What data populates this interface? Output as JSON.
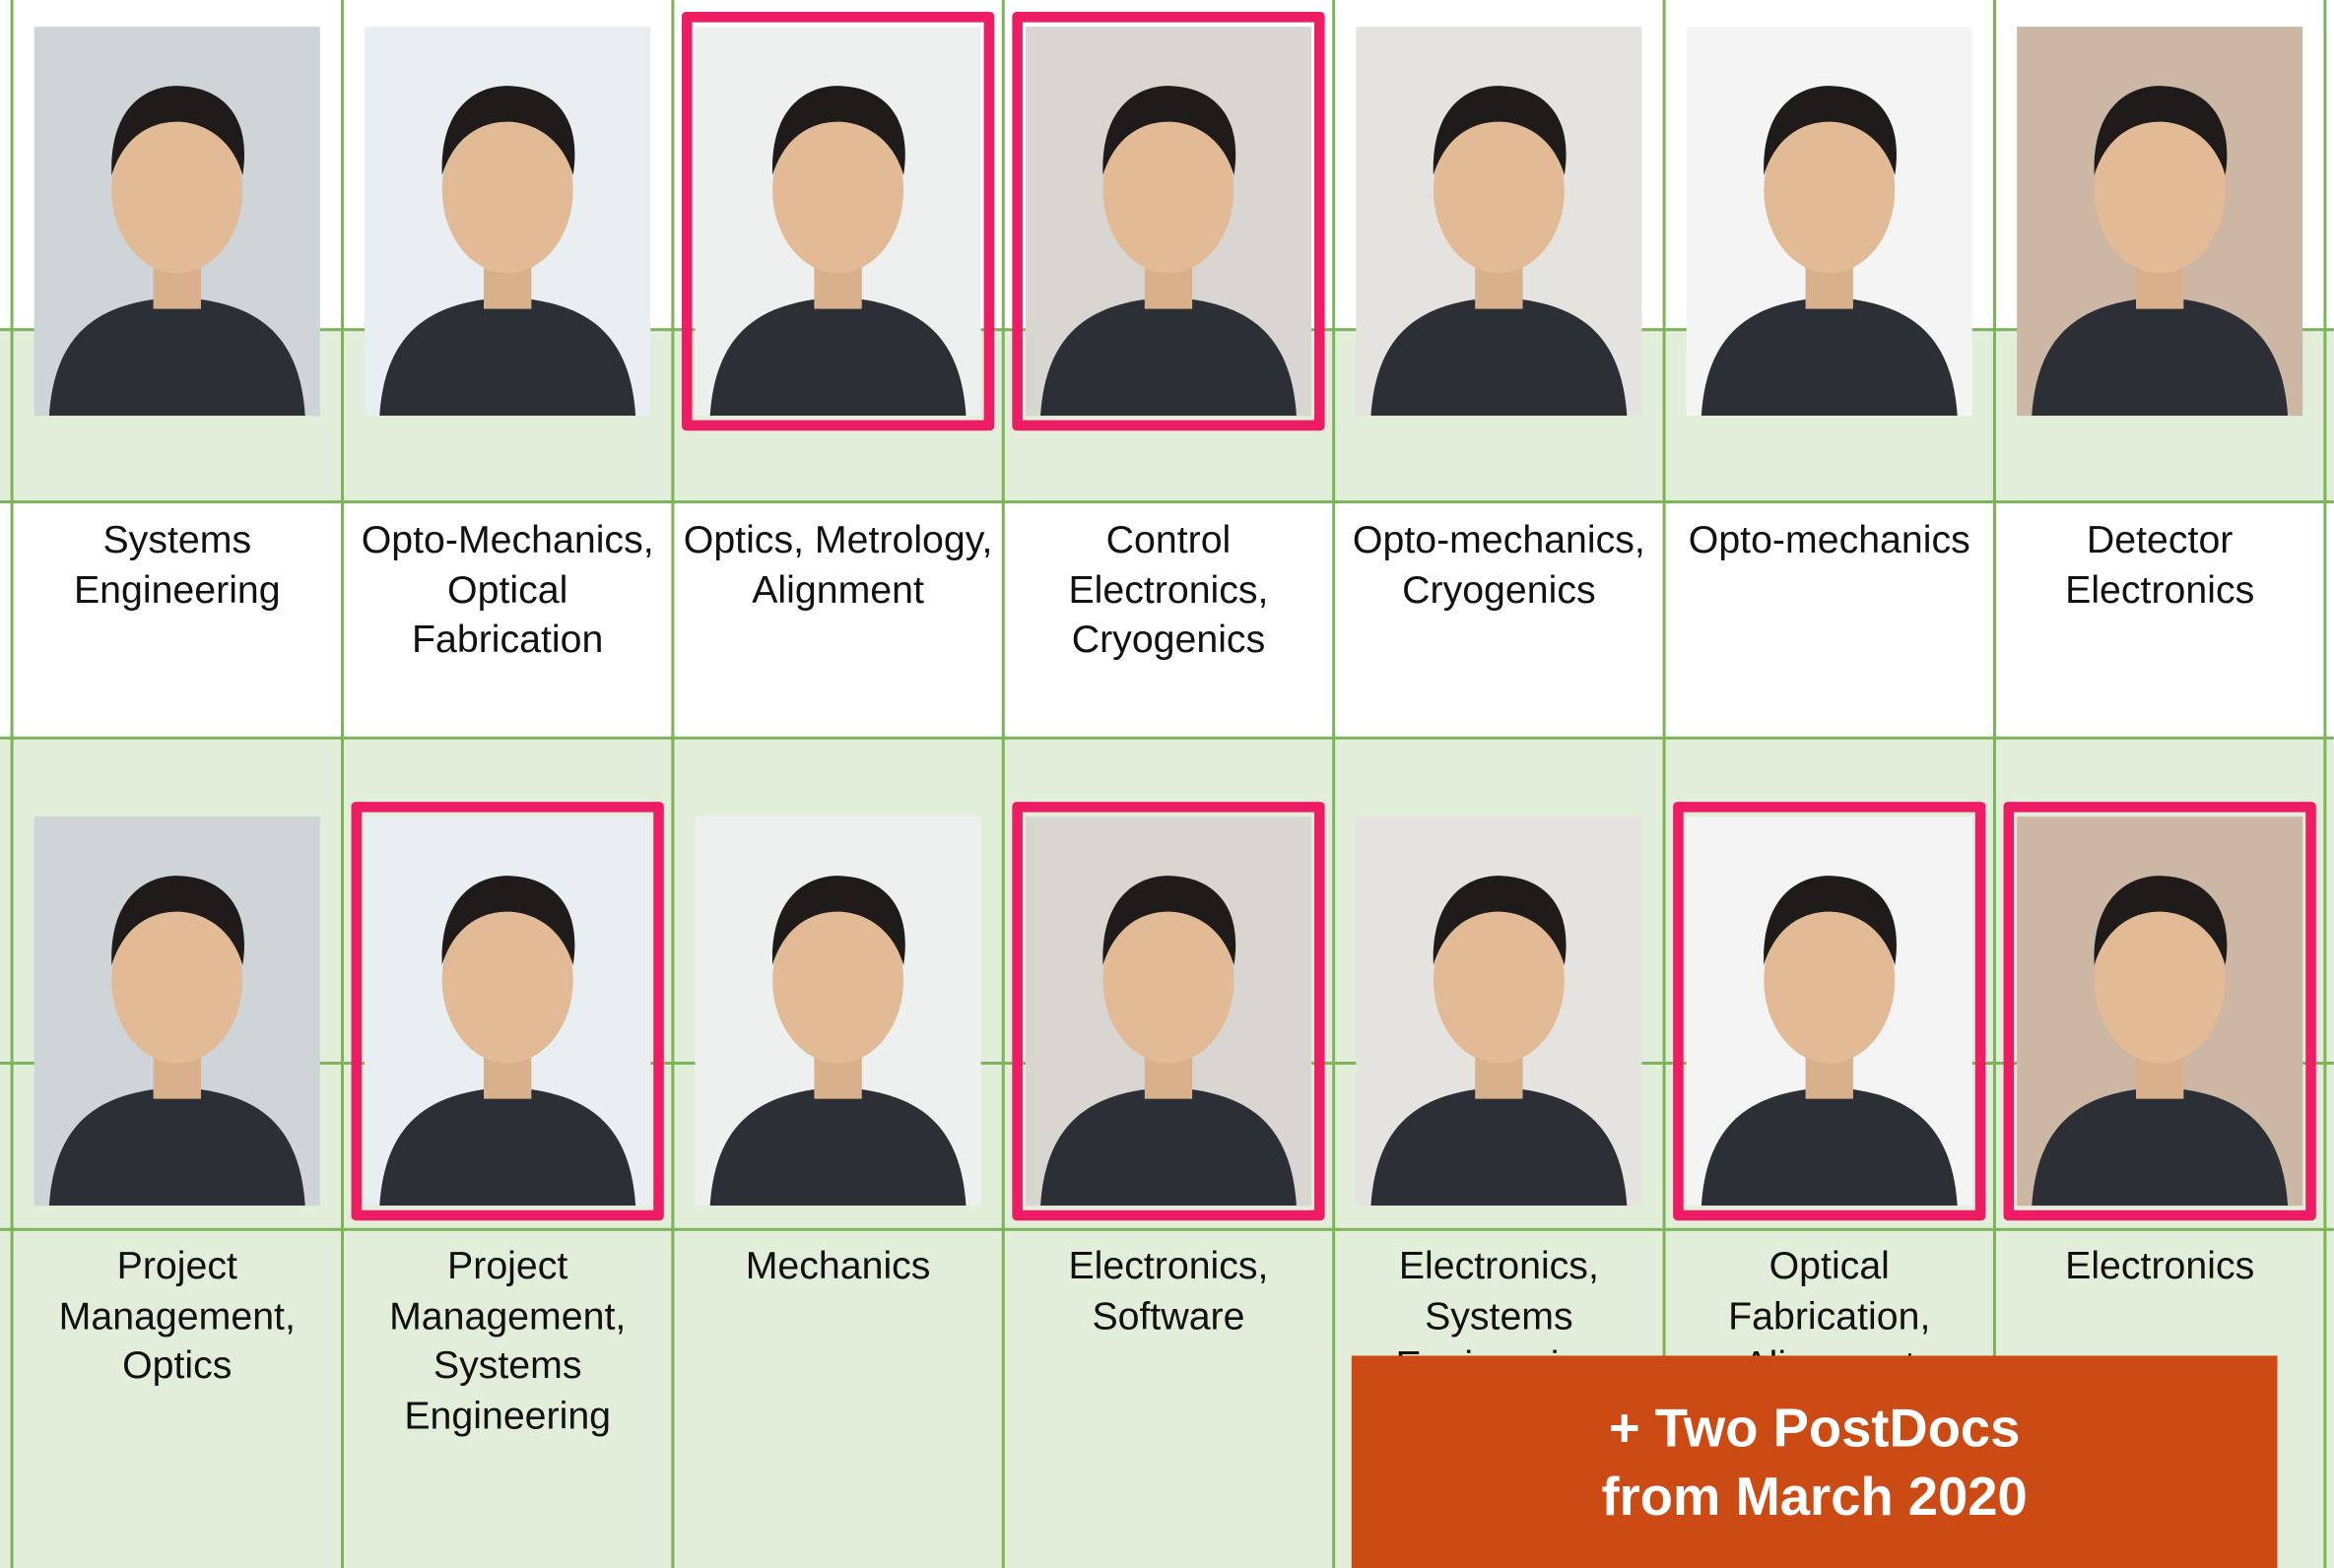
{
  "rows": [
    {
      "members": [
        {
          "role": "Systems Engineering",
          "highlighted": false
        },
        {
          "role": "Opto-Mechanics, Optical Fabrication",
          "highlighted": false
        },
        {
          "role": "Optics, Metrology, Alignment",
          "highlighted": true
        },
        {
          "role": "Control Electronics, Cryogenics",
          "highlighted": true
        },
        {
          "role": "Opto-mechanics, Cryogenics",
          "highlighted": false
        },
        {
          "role": "Opto-mechanics",
          "highlighted": false
        },
        {
          "role": "Detector Electronics",
          "highlighted": false
        }
      ]
    },
    {
      "members": [
        {
          "role": "Project Management, Optics",
          "highlighted": false
        },
        {
          "role": "Project Management, Systems Engineering",
          "highlighted": true
        },
        {
          "role": "Mechanics",
          "highlighted": false
        },
        {
          "role": "Electronics, Software",
          "highlighted": true
        },
        {
          "role": "Electronics, Systems Engineering",
          "highlighted": false
        },
        {
          "role": "Optical Fabrication, Alignment",
          "highlighted": true
        },
        {
          "role": "Electronics",
          "highlighted": true
        }
      ]
    }
  ],
  "note": [
    "+ Two PostDocs",
    "from March 2020"
  ]
}
